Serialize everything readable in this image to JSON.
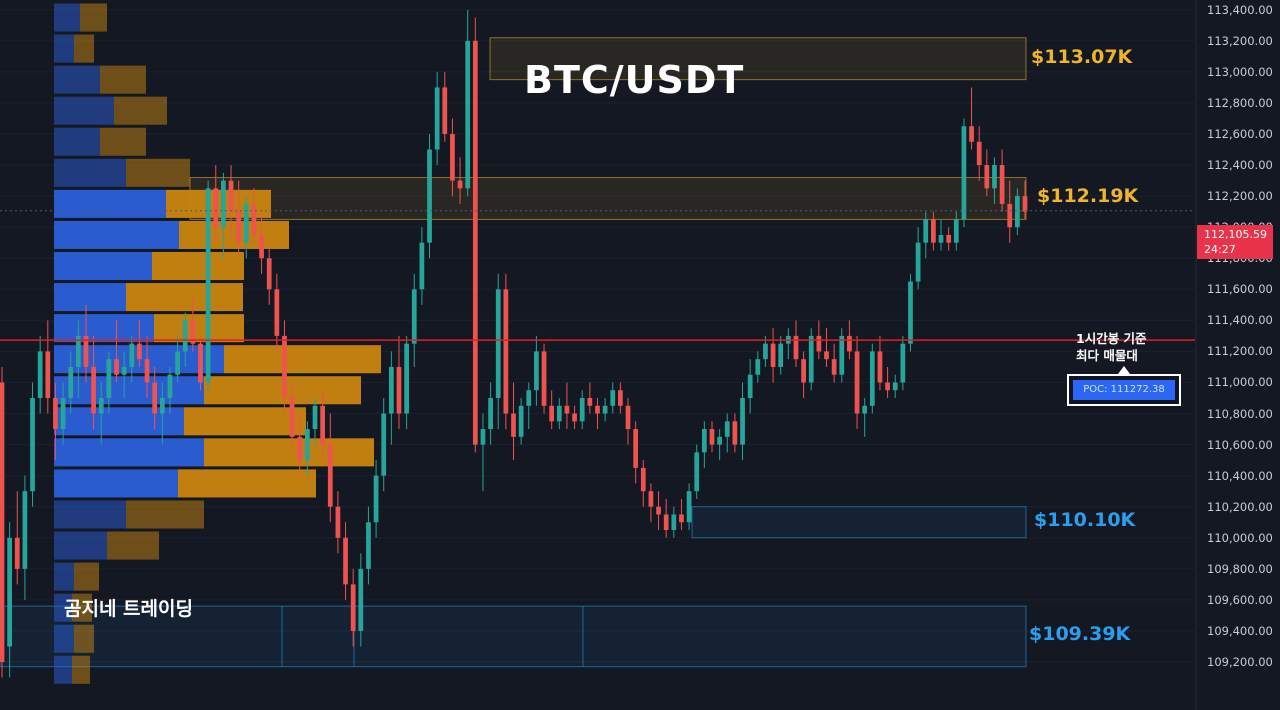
{
  "title": "BTC/USDT",
  "brand": "곰지네 트레이딩",
  "poc": {
    "note_line1": "1시간봉 기준",
    "note_line2": "최다 매물대",
    "label": "POC: 111272.38",
    "price": 111272.38
  },
  "current_price": {
    "price_text": "112,105.59",
    "countdown": "24:27",
    "price": 112105.59
  },
  "zones": [
    {
      "label": "$113.07K",
      "color": "#f0b429",
      "top": 113220,
      "bottom": 112950
    },
    {
      "label": "$112.19K",
      "color": "#f0b429",
      "top": 112320,
      "bottom": 112050
    },
    {
      "label": "$110.10K",
      "color": "#2a9ff0",
      "top": 110200,
      "bottom": 110000
    },
    {
      "label": "$109.39K",
      "color": "#2a9ff0",
      "top": 109560,
      "bottom": 109170
    }
  ],
  "y_axis": {
    "min": 109110,
    "max": 113450,
    "ticks": [
      "113,400.00",
      "113,200.00",
      "113,000.00",
      "112,800.00",
      "112,600.00",
      "112,400.00",
      "112,200.00",
      "112,000.00",
      "111,800.00",
      "111,600.00",
      "111,400.00",
      "111,200.00",
      "111,000.00",
      "110,800.00",
      "110,600.00",
      "110,400.00",
      "110,200.00",
      "110,000.00",
      "109,800.00",
      "109,600.00",
      "109,400.00",
      "109,200.00"
    ],
    "tick_values": [
      113400,
      113200,
      113000,
      112800,
      112600,
      112400,
      112200,
      112000,
      111800,
      111600,
      111400,
      111200,
      111000,
      110800,
      110600,
      110400,
      110200,
      110000,
      109800,
      109600,
      109400,
      109200
    ]
  },
  "chart_data": {
    "type": "candlestick",
    "title": "BTC/USDT",
    "colors": {
      "up": "#26a69a",
      "down": "#ef5350",
      "vp_up": "#2b5fd9",
      "vp_down": "#c9850f"
    },
    "candles": [
      [
        111000,
        111100,
        109100,
        109200
      ],
      [
        109300,
        110100,
        109100,
        110000
      ],
      [
        110000,
        110300,
        109700,
        109800
      ],
      [
        109800,
        110400,
        109600,
        110300
      ],
      [
        110300,
        111000,
        110200,
        110900
      ],
      [
        110900,
        111300,
        110800,
        111200
      ],
      [
        111200,
        111400,
        110800,
        110900
      ],
      [
        110900,
        111000,
        110500,
        110700
      ],
      [
        110700,
        111000,
        110600,
        110900
      ],
      [
        110900,
        111200,
        110800,
        111100
      ],
      [
        111100,
        111400,
        110900,
        111300
      ],
      [
        111300,
        111500,
        111000,
        111100
      ],
      [
        111100,
        111300,
        110700,
        110800
      ],
      [
        110800,
        111000,
        110600,
        110900
      ],
      [
        110900,
        111200,
        110800,
        111150
      ],
      [
        111150,
        111400,
        111000,
        111050
      ],
      [
        111050,
        111200,
        110900,
        111100
      ],
      [
        111100,
        111300,
        111000,
        111250
      ],
      [
        111250,
        111400,
        111100,
        111150
      ],
      [
        111150,
        111300,
        110900,
        111000
      ],
      [
        111000,
        111100,
        110700,
        110800
      ],
      [
        110800,
        111000,
        110600,
        110900
      ],
      [
        110900,
        111100,
        110800,
        111050
      ],
      [
        111050,
        111300,
        111000,
        111200
      ],
      [
        111200,
        111450,
        111100,
        111400
      ],
      [
        111400,
        111550,
        111200,
        111250
      ],
      [
        111250,
        111300,
        110950,
        111000
      ],
      [
        111000,
        112300,
        110950,
        112250
      ],
      [
        112250,
        112400,
        111900,
        112000
      ],
      [
        112000,
        112350,
        111800,
        112300
      ],
      [
        112300,
        112400,
        111950,
        112100
      ],
      [
        112100,
        112300,
        111800,
        111900
      ],
      [
        111900,
        112200,
        111800,
        112150
      ],
      [
        112150,
        112250,
        111900,
        111950
      ],
      [
        111950,
        112100,
        111700,
        111800
      ],
      [
        111800,
        111900,
        111500,
        111600
      ],
      [
        111600,
        111700,
        111200,
        111300
      ],
      [
        111300,
        111400,
        110800,
        110900
      ],
      [
        110900,
        111000,
        110600,
        110650
      ],
      [
        110650,
        110800,
        110400,
        110500
      ],
      [
        110500,
        110750,
        110400,
        110700
      ],
      [
        110700,
        110900,
        110600,
        110850
      ],
      [
        110850,
        110950,
        110500,
        110600
      ],
      [
        110600,
        110800,
        110100,
        110200
      ],
      [
        110200,
        110300,
        109900,
        110000
      ],
      [
        110000,
        110100,
        109600,
        109700
      ],
      [
        109700,
        109800,
        109300,
        109400
      ],
      [
        109400,
        109900,
        109300,
        109800
      ],
      [
        109800,
        110200,
        109700,
        110100
      ],
      [
        110100,
        110500,
        110000,
        110400
      ],
      [
        110400,
        110900,
        110300,
        110800
      ],
      [
        110800,
        111200,
        110600,
        111100
      ],
      [
        111100,
        111300,
        110700,
        110800
      ],
      [
        110800,
        111300,
        110700,
        111250
      ],
      [
        111250,
        111700,
        111100,
        111600
      ],
      [
        111600,
        112000,
        111500,
        111900
      ],
      [
        111900,
        112600,
        111800,
        112500
      ],
      [
        112500,
        113000,
        112400,
        112900
      ],
      [
        112900,
        113000,
        112550,
        112600
      ],
      [
        112600,
        112700,
        112200,
        112300
      ],
      [
        112300,
        112450,
        112150,
        112250
      ],
      [
        112250,
        113400,
        112200,
        113200
      ],
      [
        113200,
        113350,
        110550,
        110600
      ],
      [
        110600,
        110800,
        110300,
        110700
      ],
      [
        110700,
        111000,
        110600,
        110900
      ],
      [
        110900,
        111700,
        110700,
        111600
      ],
      [
        111600,
        111700,
        110700,
        110800
      ],
      [
        110800,
        111000,
        110500,
        110650
      ],
      [
        110650,
        110900,
        110600,
        110850
      ],
      [
        110850,
        111000,
        110700,
        110950
      ],
      [
        110950,
        111300,
        110850,
        111200
      ],
      [
        111200,
        111250,
        110800,
        110850
      ],
      [
        110850,
        110950,
        110700,
        110750
      ],
      [
        110750,
        110900,
        110700,
        110850
      ],
      [
        110850,
        111000,
        110700,
        110800
      ],
      [
        110800,
        110850,
        110700,
        110750
      ],
      [
        110750,
        110950,
        110700,
        110900
      ],
      [
        110900,
        111000,
        110800,
        110850
      ],
      [
        110850,
        110900,
        110700,
        110800
      ],
      [
        110800,
        110900,
        110750,
        110850
      ],
      [
        110850,
        111000,
        110800,
        110950
      ],
      [
        110950,
        111000,
        110800,
        110850
      ],
      [
        110850,
        110900,
        110600,
        110700
      ],
      [
        110700,
        110750,
        110350,
        110450
      ],
      [
        110450,
        110500,
        110200,
        110300
      ],
      [
        110300,
        110350,
        110100,
        110200
      ],
      [
        110200,
        110300,
        110050,
        110150
      ],
      [
        110150,
        110250,
        110000,
        110050
      ],
      [
        110050,
        110200,
        110000,
        110150
      ],
      [
        110150,
        110250,
        110050,
        110100
      ],
      [
        110100,
        110350,
        110050,
        110300
      ],
      [
        110300,
        110600,
        110250,
        110550
      ],
      [
        110550,
        110750,
        110450,
        110700
      ],
      [
        110700,
        110750,
        110550,
        110600
      ],
      [
        110600,
        110700,
        110500,
        110650
      ],
      [
        110650,
        110800,
        110550,
        110750
      ],
      [
        110750,
        110800,
        110550,
        110600
      ],
      [
        110600,
        111000,
        110500,
        110900
      ],
      [
        110900,
        111150,
        110800,
        111050
      ],
      [
        111050,
        111200,
        111000,
        111150
      ],
      [
        111150,
        111300,
        111100,
        111250
      ],
      [
        111250,
        111350,
        111000,
        111100
      ],
      [
        111100,
        111300,
        111050,
        111250
      ],
      [
        111250,
        111350,
        111150,
        111300
      ],
      [
        111300,
        111400,
        111100,
        111150
      ],
      [
        111150,
        111200,
        110900,
        111000
      ],
      [
        111000,
        111350,
        110950,
        111300
      ],
      [
        111300,
        111400,
        111150,
        111200
      ],
      [
        111200,
        111350,
        111100,
        111150
      ],
      [
        111150,
        111250,
        111000,
        111050
      ],
      [
        111050,
        111350,
        111000,
        111300
      ],
      [
        111300,
        111400,
        111150,
        111200
      ],
      [
        111200,
        111300,
        110700,
        110800
      ],
      [
        110800,
        110900,
        110650,
        110850
      ],
      [
        110850,
        111250,
        110800,
        111200
      ],
      [
        111200,
        111300,
        110950,
        111000
      ],
      [
        111000,
        111100,
        110900,
        110950
      ],
      [
        110950,
        111050,
        110900,
        111000
      ],
      [
        111000,
        111300,
        110950,
        111250
      ],
      [
        111250,
        111700,
        111200,
        111650
      ],
      [
        111650,
        112000,
        111600,
        111900
      ],
      [
        111900,
        112100,
        111800,
        112050
      ],
      [
        112050,
        112100,
        111850,
        111900
      ],
      [
        111900,
        112050,
        111850,
        111950
      ],
      [
        111950,
        112000,
        111850,
        111900
      ],
      [
        111900,
        112100,
        111850,
        112050
      ],
      [
        112050,
        112700,
        112000,
        112650
      ],
      [
        112650,
        112900,
        112500,
        112550
      ],
      [
        112550,
        112650,
        112300,
        112400
      ],
      [
        112400,
        112500,
        112200,
        112250
      ],
      [
        112250,
        112450,
        112150,
        112400
      ],
      [
        112400,
        112500,
        112100,
        112150
      ],
      [
        112150,
        112300,
        111900,
        112000
      ],
      [
        112000,
        112250,
        111950,
        112200
      ],
      [
        112200,
        112300,
        112050,
        112100
      ]
    ],
    "volume_profile": {
      "bin_size": 200,
      "bins": [
        {
          "price": 113350,
          "up": 26,
          "down": 27
        },
        {
          "price": 113150,
          "up": 20,
          "down": 20
        },
        {
          "price": 112950,
          "up": 46,
          "down": 46
        },
        {
          "price": 112750,
          "up": 60,
          "down": 53
        },
        {
          "price": 112550,
          "up": 46,
          "down": 46
        },
        {
          "price": 112350,
          "up": 72,
          "down": 64
        },
        {
          "price": 112150,
          "up": 112,
          "down": 105
        },
        {
          "price": 111950,
          "up": 125,
          "down": 110
        },
        {
          "price": 111750,
          "up": 98,
          "down": 92
        },
        {
          "price": 111550,
          "up": 72,
          "down": 117
        },
        {
          "price": 111350,
          "up": 100,
          "down": 90
        },
        {
          "price": 111150,
          "up": 170,
          "down": 157
        },
        {
          "price": 110950,
          "up": 150,
          "down": 157
        },
        {
          "price": 110750,
          "up": 130,
          "down": 122
        },
        {
          "price": 110550,
          "up": 150,
          "down": 170
        },
        {
          "price": 110350,
          "up": 124,
          "down": 138
        },
        {
          "price": 110150,
          "up": 72,
          "down": 78
        },
        {
          "price": 109950,
          "up": 53,
          "down": 52
        },
        {
          "price": 109750,
          "up": 20,
          "down": 25
        },
        {
          "price": 109550,
          "up": 18,
          "down": 20
        },
        {
          "price": 109350,
          "up": 20,
          "down": 20
        },
        {
          "price": 109150,
          "up": 18,
          "down": 18
        }
      ]
    }
  }
}
